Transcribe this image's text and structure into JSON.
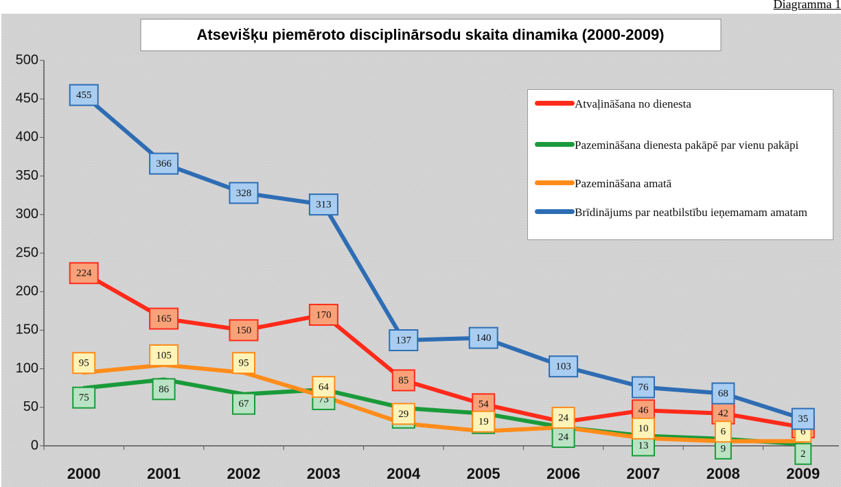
{
  "header": "Diagramma 1",
  "chart_data": {
    "type": "line",
    "title": "Atsevišķu piemēroto disciplinārsodu skaita dinamika (2000-2009)",
    "categories": [
      "2000",
      "2001",
      "2002",
      "2003",
      "2004",
      "2005",
      "2006",
      "2007",
      "2008",
      "2009"
    ],
    "series": [
      {
        "name": "Atvaļināšana no dienesta",
        "color": "#ff2a1a",
        "values": [
          224,
          165,
          150,
          170,
          85,
          54,
          31,
          46,
          42,
          24
        ]
      },
      {
        "name": "Pazemināšana dienesta pakāpē par vienu pakāpi",
        "color": "#1a9a3a",
        "values": [
          75,
          86,
          67,
          73,
          49,
          42,
          24,
          13,
          9,
          2
        ]
      },
      {
        "name": "Pazemināšana amatā",
        "color": "#ff8c1a",
        "values": [
          95,
          105,
          95,
          64,
          29,
          19,
          24,
          10,
          6,
          6
        ]
      },
      {
        "name": "Brīdinājums par neatbilstību ieņemamam amatam",
        "color": "#2e6db4",
        "values": [
          455,
          366,
          328,
          313,
          137,
          140,
          103,
          76,
          68,
          35
        ]
      }
    ],
    "ylim": [
      0,
      500
    ],
    "yticks": [
      0,
      50,
      100,
      150,
      200,
      250,
      300,
      350,
      400,
      450,
      500
    ]
  }
}
